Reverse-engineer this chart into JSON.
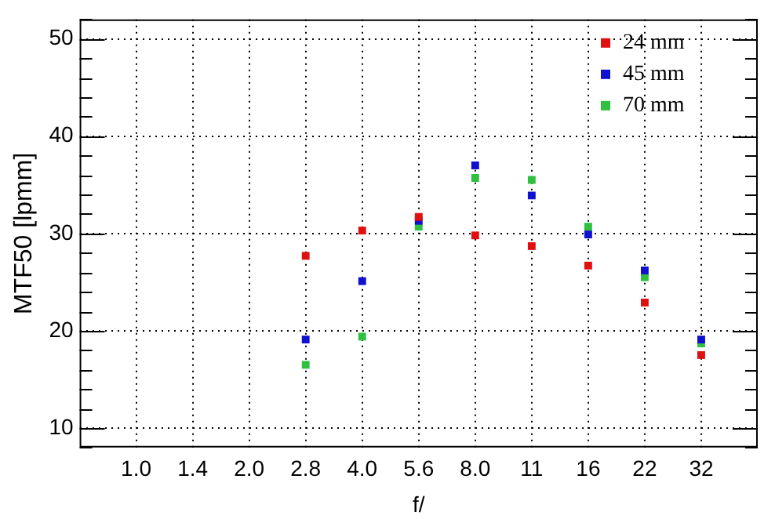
{
  "chart_data": {
    "type": "scatter",
    "xlabel": "f/",
    "ylabel": "MTF50 [lpmm]",
    "categories": [
      "1.0",
      "1.4",
      "2.0",
      "2.8",
      "4.0",
      "5.6",
      "8.0",
      "11",
      "16",
      "22",
      "32"
    ],
    "series": [
      {
        "name": "24 mm",
        "color": "#e01010",
        "values": [
          null,
          null,
          null,
          27.7,
          30.3,
          31.7,
          29.8,
          28.7,
          26.7,
          22.9,
          17.5
        ]
      },
      {
        "name": "45 mm",
        "color": "#1010d0",
        "values": [
          null,
          null,
          null,
          19.1,
          25.1,
          31.3,
          37.0,
          33.9,
          29.9,
          26.2,
          19.1
        ]
      },
      {
        "name": "70 mm",
        "color": "#30c040",
        "values": [
          null,
          null,
          null,
          16.5,
          19.4,
          30.7,
          35.7,
          35.5,
          30.7,
          25.5,
          18.7
        ]
      }
    ],
    "ylim": [
      8,
      52
    ],
    "yticks": [
      {
        "value": 8,
        "label": null
      },
      10,
      {
        "value": 12,
        "label": null
      },
      {
        "value": 14,
        "label": null
      },
      {
        "value": 16,
        "label": null
      },
      {
        "value": 18,
        "label": null
      },
      20,
      {
        "value": 22,
        "label": null
      },
      {
        "value": 24,
        "label": null
      },
      {
        "value": 26,
        "label": null
      },
      {
        "value": 28,
        "label": null
      },
      30,
      {
        "value": 32,
        "label": null
      },
      {
        "value": 34,
        "label": null
      },
      {
        "value": 36,
        "label": null
      },
      {
        "value": 38,
        "label": null
      },
      40,
      {
        "value": 42,
        "label": null
      },
      {
        "value": 44,
        "label": null
      },
      {
        "value": 46,
        "label": null
      },
      {
        "value": 48,
        "label": null
      },
      50,
      {
        "value": 52,
        "label": null
      }
    ],
    "grid": true,
    "legend": "top right",
    "marker": "square"
  }
}
